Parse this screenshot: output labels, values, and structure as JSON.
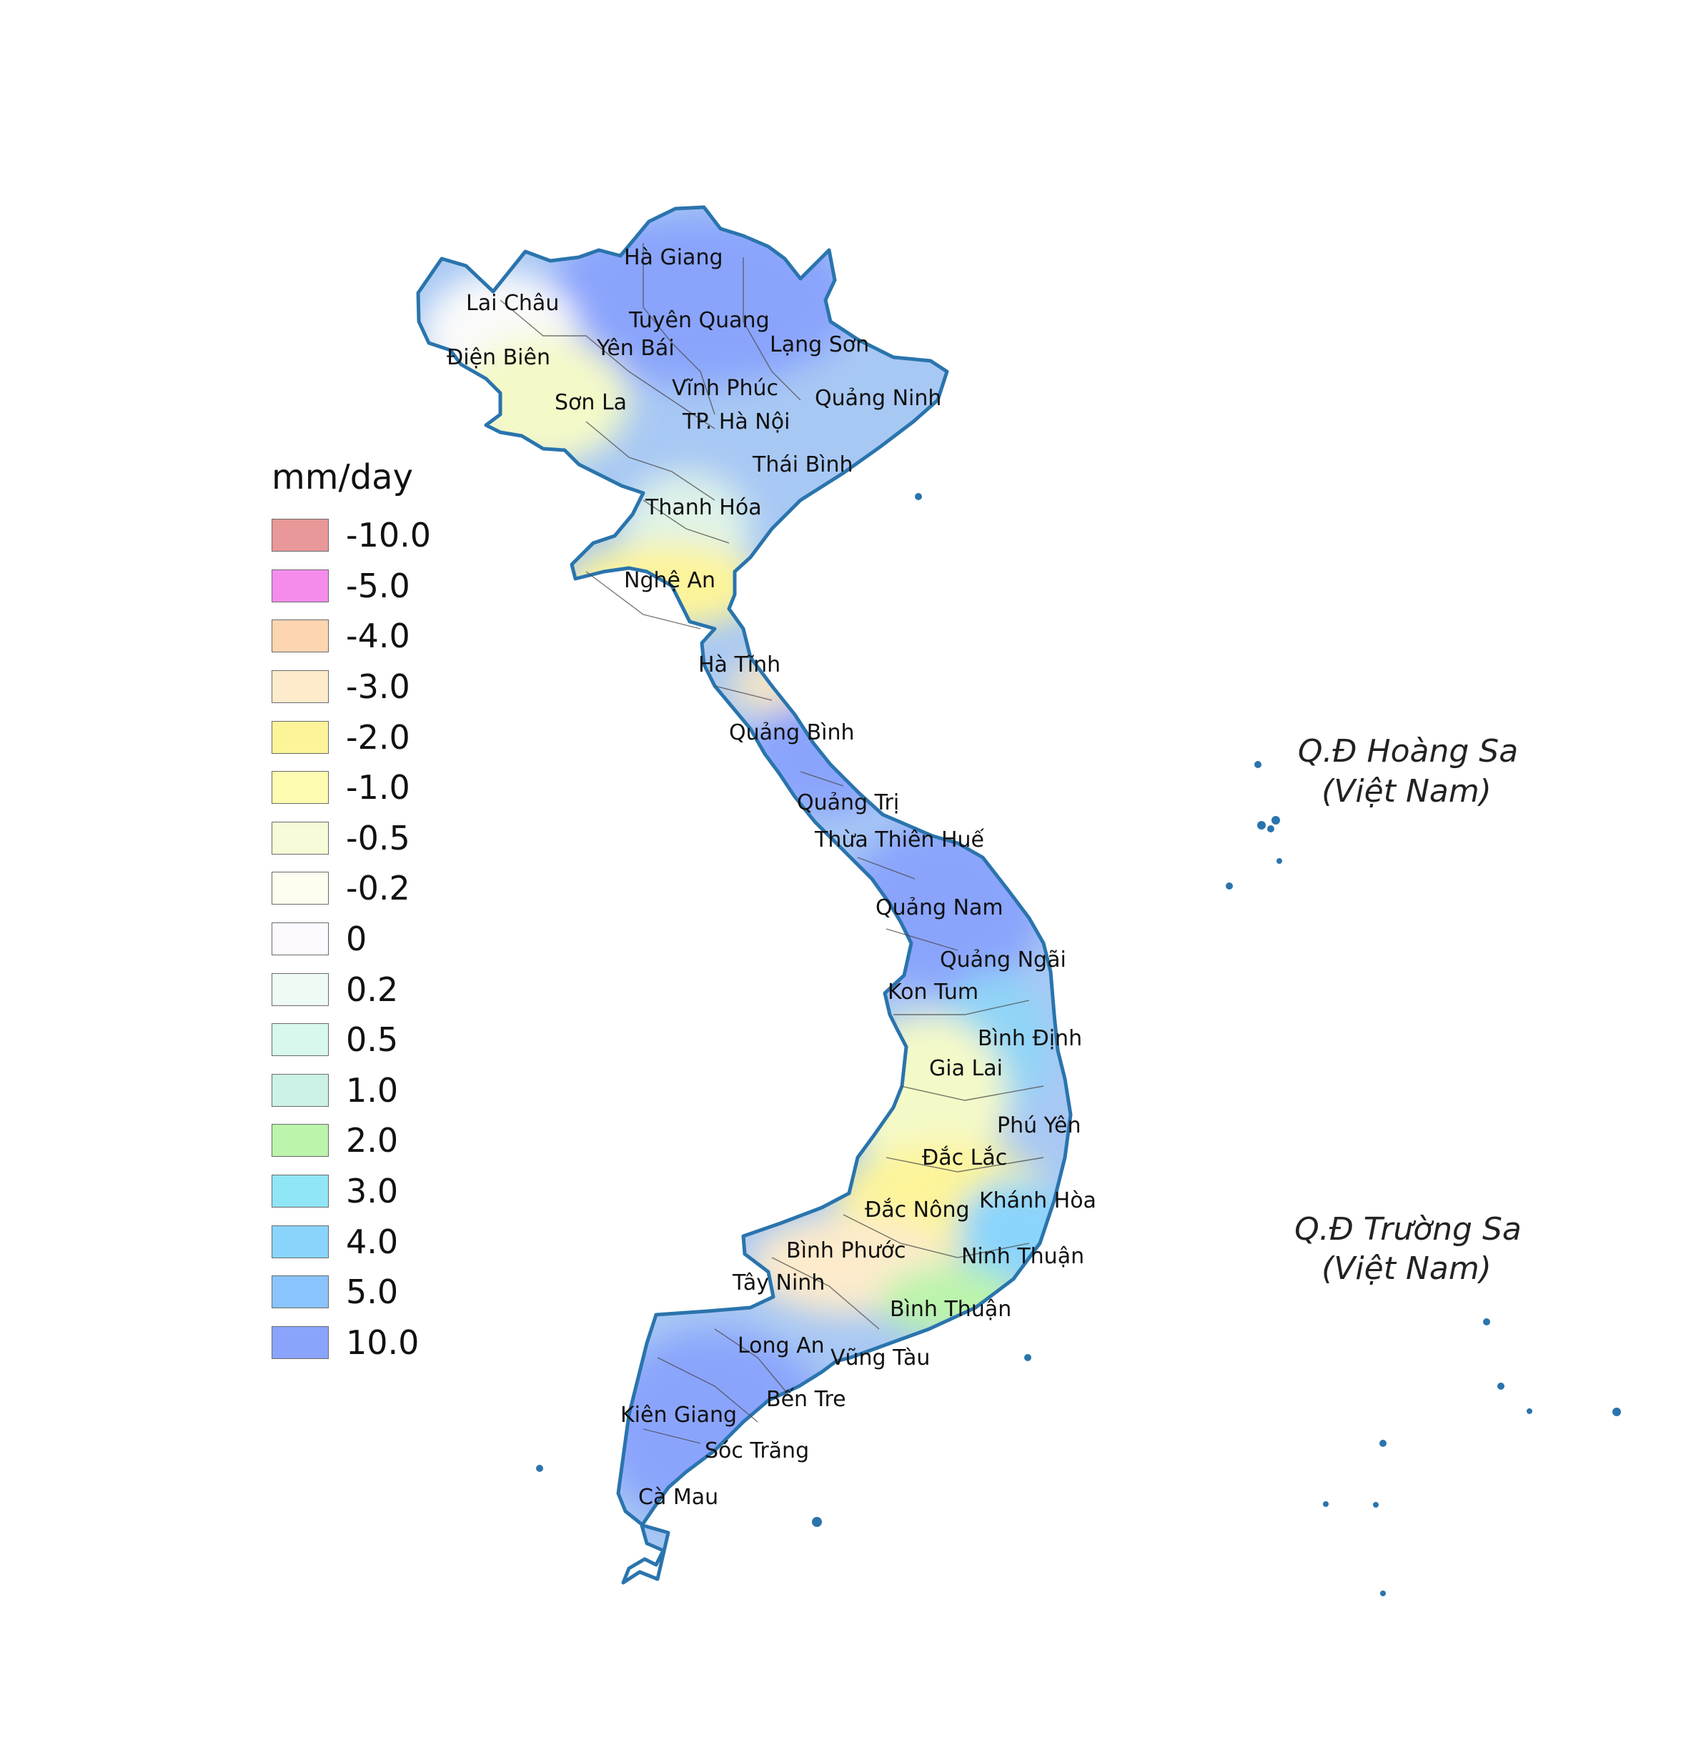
{
  "legend": {
    "title": "mm/day",
    "items": [
      {
        "label": "-10.0",
        "color": "#e89898"
      },
      {
        "label": "-5.0",
        "color": "#f58cec"
      },
      {
        "label": "-4.0",
        "color": "#fdd5b0"
      },
      {
        "label": "-3.0",
        "color": "#fdebcc"
      },
      {
        "label": "-2.0",
        "color": "#fdf49a"
      },
      {
        "label": "-1.0",
        "color": "#fdfcb0"
      },
      {
        "label": "-0.5",
        "color": "#f8fbd8"
      },
      {
        "label": "-0.2",
        "color": "#fefef0"
      },
      {
        "label": "0",
        "color": "#fcfafe"
      },
      {
        "label": "0.2",
        "color": "#eefbf4"
      },
      {
        "label": "0.5",
        "color": "#d8f8ee"
      },
      {
        "label": "1.0",
        "color": "#ccf1e6"
      },
      {
        "label": "2.0",
        "color": "#bcf4ac"
      },
      {
        "label": "3.0",
        "color": "#90e6f6"
      },
      {
        "label": "4.0",
        "color": "#8ad4fc"
      },
      {
        "label": "5.0",
        "color": "#8ac4fc"
      },
      {
        "label": "10.0",
        "color": "#8aa4fc"
      }
    ]
  },
  "provinces": [
    "Hà Giang",
    "Lai Châu",
    "Tuyên Quang",
    "Điện Biên",
    "Yên Bái",
    "Lạng Sơn",
    "Sơn La",
    "Vĩnh Phúc",
    "Quảng Ninh",
    "TP. Hà Nội",
    "Thái Bình",
    "Thanh Hóa",
    "Nghệ An",
    "Hà Tĩnh",
    "Quảng Bình",
    "Quảng Trị",
    "Thừa Thiên Huế",
    "Quảng Nam",
    "Quảng Ngãi",
    "Kon Tum",
    "Bình Định",
    "Gia Lai",
    "Phú Yên",
    "Đắc Lắc",
    "Khánh Hòa",
    "Đắc Nông",
    "Ninh Thuận",
    "Bình Phước",
    "Tây Ninh",
    "Bình Thuận",
    "Long An",
    "Vũng Tàu",
    "Bến Tre",
    "Kiên Giang",
    "Sóc Trăng",
    "Cà Mau"
  ],
  "islands": {
    "hoang_sa": {
      "name": "Q.Đ Hoàng Sa",
      "country": "(Việt Nam)"
    },
    "truong_sa": {
      "name": "Q.Đ Trường Sa",
      "country": "(Việt Nam)"
    }
  },
  "colors": {
    "border": "#2a74ad",
    "province_lines": "#4a4a4a",
    "wet": "#8aa4fc",
    "dry": "#fdf49a"
  }
}
